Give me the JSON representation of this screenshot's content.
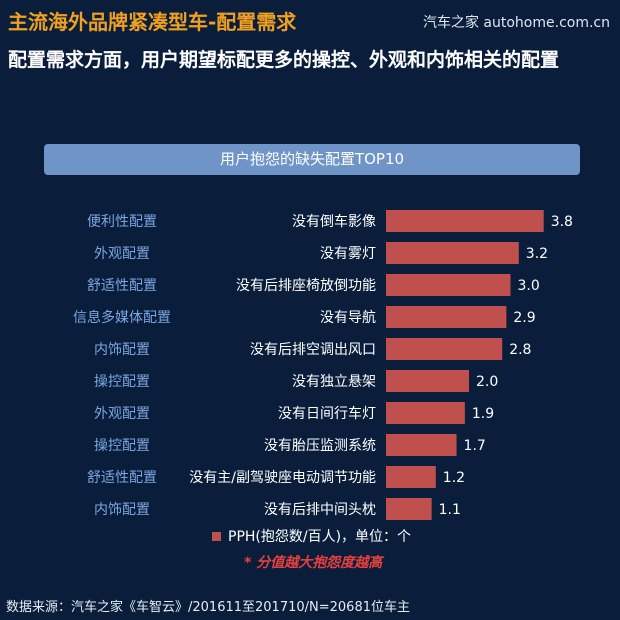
{
  "header": {
    "title": "主流海外品牌紧凑型车-配置需求",
    "logo": "汽车之家 autohome.com.cn",
    "subtitle": "配置需求方面，用户期望标配更多的操控、外观和内饰相关的配置"
  },
  "chart_data": {
    "type": "bar",
    "orientation": "horizontal",
    "title": "用户抱怨的缺失配置TOP10",
    "categories": [
      "没有倒车影像",
      "没有雾灯",
      "没有后排座椅放倒功能",
      "没有导航",
      "没有后排空调出风口",
      "没有独立悬架",
      "没有日间行车灯",
      "没有胎压监测系统",
      "没有主/副驾驶座电动调节功能",
      "没有后排中间头枕"
    ],
    "groups": [
      "便利性配置",
      "外观配置",
      "舒适性配置",
      "信息多媒体配置",
      "内饰配置",
      "操控配置",
      "外观配置",
      "操控配置",
      "舒适性配置",
      "内饰配置"
    ],
    "series": [
      {
        "name": "PPH(抱怨数/百人)，单位：个",
        "values": [
          3.8,
          3.2,
          3.0,
          2.9,
          2.8,
          2.0,
          1.9,
          1.7,
          1.2,
          1.1
        ]
      }
    ],
    "value_labels": [
      "3.8",
      "3.2",
      "3.0",
      "2.9",
      "2.8",
      "2.0",
      "1.9",
      "1.7",
      "1.2",
      "1.1"
    ],
    "xlim": [
      0,
      4.2
    ],
    "legend_position": "bottom",
    "grid": false,
    "note": "* 分值越大抱怨度越高"
  },
  "colors": {
    "background": "#0a1e3c",
    "title": "#f0a020",
    "bar": "#c0504d",
    "group_label": "#7aa6e0",
    "banner": "#6f95c8",
    "note": "#e8403c"
  },
  "footer": {
    "source": "数据来源：汽车之家《车智云》/201611至201710/N=20681位车主"
  }
}
